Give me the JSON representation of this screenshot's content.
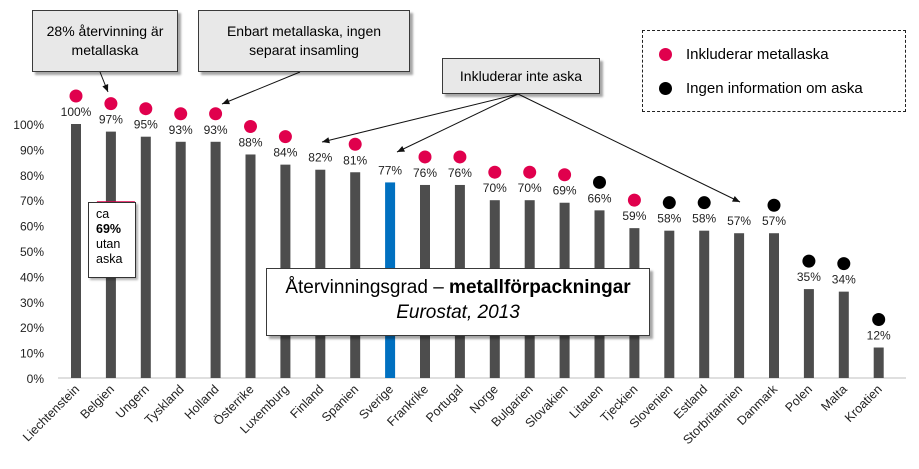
{
  "chart_data": {
    "type": "bar",
    "title": "Återvinningsgrad – metallförpackningar",
    "title_plain": "Återvinningsgrad – ",
    "title_bold": "metallförpackningar",
    "subtitle": "Eurostat, 2013",
    "categories": [
      "Liechtenstein",
      "Belgien",
      "Ungern",
      "Tyskland",
      "Holland",
      "Österrike",
      "Luxemburg",
      "Finland",
      "Spanien",
      "Sverige",
      "Frankrike",
      "Portugal",
      "Norge",
      "Bulgarien",
      "Slovakien",
      "Litauen",
      "Tjeckien",
      "Slovenien",
      "Estland",
      "Storbritannien",
      "Danmark",
      "Polen",
      "Malta",
      "Kroatien"
    ],
    "values": [
      100,
      97,
      95,
      93,
      93,
      88,
      84,
      82,
      81,
      77,
      76,
      76,
      70,
      70,
      69,
      66,
      59,
      58,
      58,
      57,
      57,
      35,
      34,
      12
    ],
    "value_labels": [
      "100%",
      "97%",
      "95%",
      "93%",
      "93%",
      "88%",
      "84%",
      "82%",
      "81%",
      "77%",
      "76%",
      "76%",
      "70%",
      "70%",
      "69%",
      "66%",
      "59%",
      "58%",
      "58%",
      "57%",
      "57%",
      "35%",
      "34%",
      "12%"
    ],
    "marker": [
      "ash",
      "ash",
      "ash",
      "ash",
      "ash",
      "ash",
      "ash",
      "none",
      "ash",
      "none",
      "ash",
      "ash",
      "ash",
      "ash",
      "ash",
      "info",
      "ash",
      "info",
      "info",
      "none",
      "info",
      "info",
      "info",
      "info"
    ],
    "highlight_category": "Sverige",
    "ylim": [
      0,
      100
    ],
    "yticks": [
      "0%",
      "10%",
      "20%",
      "30%",
      "40%",
      "50%",
      "60%",
      "70%",
      "80%",
      "90%",
      "100%"
    ],
    "legend": [
      {
        "label": "Inkluderar metallaska",
        "color": "#e0004d"
      },
      {
        "label": "Ingen information om aska",
        "color": "#000000"
      }
    ],
    "legend_position": "top-right",
    "grid": false
  },
  "annotations": {
    "callout_liechtenstein": "28% återvinning är metallaska",
    "callout_holland": "Enbart metallaska, ingen separat insamling",
    "callout_no_ash": "Inkluderar inte aska",
    "note_belgien": {
      "line1": "ca",
      "line2": "69%",
      "line3": "utan",
      "line4": "aska",
      "value": 69
    }
  },
  "colors": {
    "bar": "#4d4d4d",
    "bar_highlight": "#0070c0",
    "ash_marker": "#e0004d",
    "info_marker": "#000000"
  }
}
